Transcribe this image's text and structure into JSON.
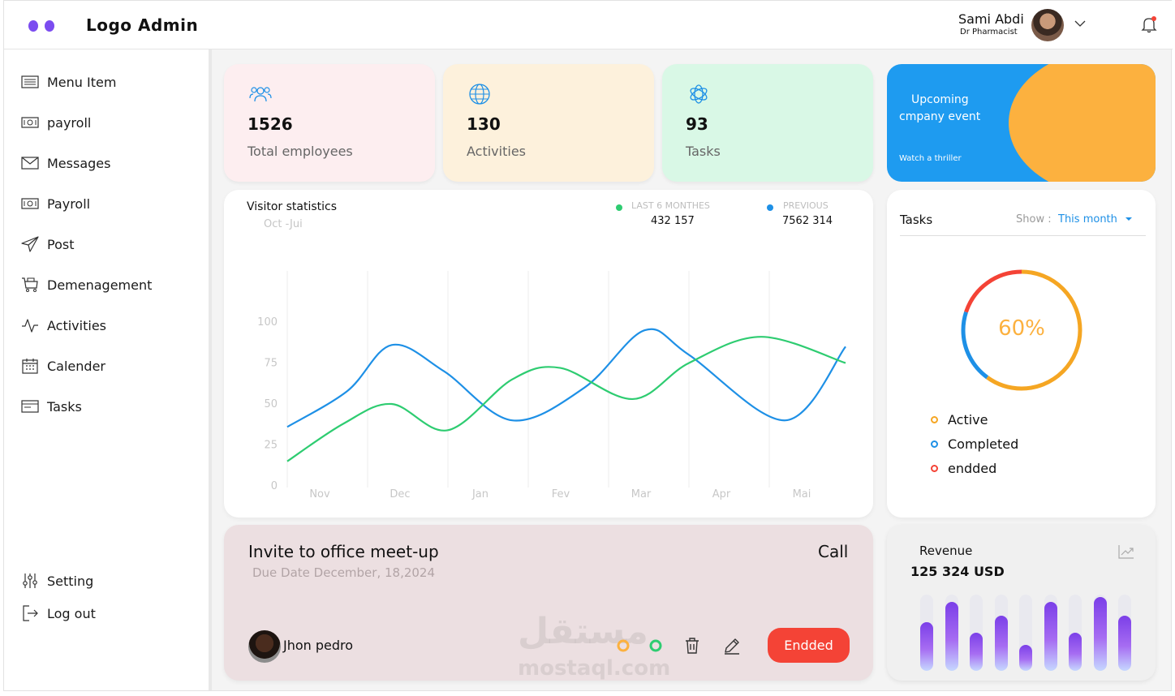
{
  "header": {
    "logo_text": "Logo Admin",
    "user_name": "Sami Abdi",
    "user_role": "Dr Pharmacist"
  },
  "sidebar": {
    "items": [
      {
        "label": "Menu Item",
        "icon": "menu-list-icon"
      },
      {
        "label": "payroll",
        "icon": "money-icon"
      },
      {
        "label": "Messages",
        "icon": "mail-icon"
      },
      {
        "label": "Payroll",
        "icon": "money-icon"
      },
      {
        "label": "Post",
        "icon": "send-icon"
      },
      {
        "label": "Demenagement",
        "icon": "cart-icon"
      },
      {
        "label": "Activities",
        "icon": "activity-icon"
      },
      {
        "label": "Calender",
        "icon": "calendar-icon"
      },
      {
        "label": "Tasks",
        "icon": "tasks-icon"
      }
    ],
    "setting_label": "Setting",
    "logout_label": "Log out"
  },
  "stats": [
    {
      "value": "1526",
      "label": "Total employees",
      "icon": "users-icon",
      "color": "#fdeef0"
    },
    {
      "value": "130",
      "label": "Activities",
      "icon": "globe-icon",
      "color": "#fdf1dc"
    },
    {
      "value": "93",
      "label": "Tasks",
      "icon": "openai-icon",
      "color": "#d9f8e6"
    }
  ],
  "event": {
    "title_line1": "Upcoming",
    "title_line2": "cmpany event",
    "link": "Watch a thriller"
  },
  "visitor": {
    "title": "Visitor statistics",
    "period": "Oct -Jui",
    "current_label": "LAST 6 MONTHES",
    "current_value": "432 157",
    "previous_label": "PREVIOUS",
    "previous_value": "7562 314"
  },
  "chart_data": {
    "type": "line",
    "categories": [
      "Nov",
      "Dec",
      "Jan",
      "Fev",
      "Mar",
      "Apr",
      "Mai"
    ],
    "yticks": [
      0,
      25,
      50,
      75,
      100
    ],
    "ylim": [
      0,
      100
    ],
    "series": [
      {
        "color": "#1e90e6",
        "x": [
          0,
          0.75,
          1.3,
          1.95,
          2.8,
          3.7,
          4.45,
          5,
          6.2,
          6.95
        ],
        "values": [
          36,
          58,
          86,
          70,
          40,
          60,
          95,
          80,
          40,
          85
        ]
      },
      {
        "color": "#2ecc71",
        "x": [
          0,
          0.7,
          1.3,
          2,
          2.8,
          3.4,
          4.3,
          5,
          5.9,
          6.95
        ],
        "values": [
          15,
          38,
          50,
          34,
          65,
          72,
          53,
          75,
          91,
          75
        ]
      }
    ],
    "grid": "vertical"
  },
  "tasks": {
    "title": "Tasks",
    "show_label": "Show :",
    "show_value": "This month",
    "percent_label": "60%",
    "percent": 60,
    "segments": [
      {
        "name": "Active",
        "value": 60,
        "color": "#f5a623"
      },
      {
        "name": "Completed",
        "value": 20,
        "color": "#1e90e6"
      },
      {
        "name": "endded",
        "value": 20,
        "color": "#f44336"
      }
    ]
  },
  "meetup": {
    "title": "Invite to office meet-up",
    "call_label": "Call",
    "due": "Due Date December, 18,2024",
    "person": "Jhon pedro",
    "status_button": "Endded"
  },
  "watermark": {
    "arabic": "مستقل",
    "latin": "mostaql.com"
  },
  "revenue": {
    "title": "Revenue",
    "value": "125 324 USD",
    "bars": [
      0.64,
      0.9,
      0.5,
      0.72,
      0.34,
      0.9,
      0.5,
      0.97,
      0.72
    ]
  }
}
